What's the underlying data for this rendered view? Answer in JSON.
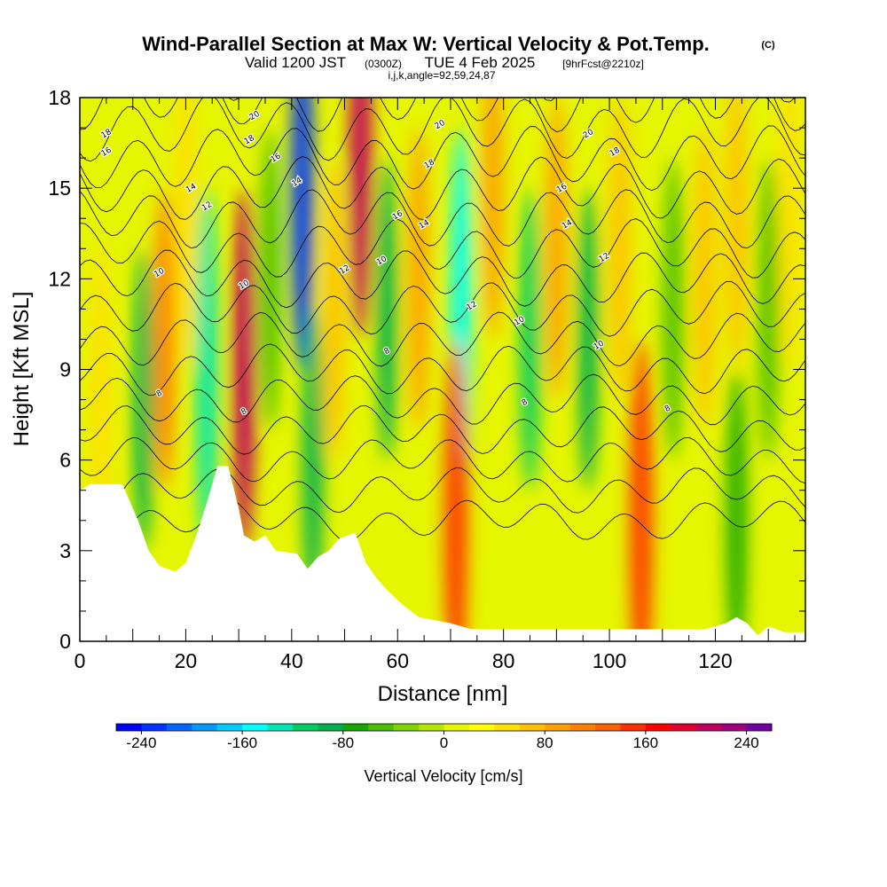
{
  "title": {
    "main": "Wind-Parallel Section at Max W: Vertical Velocity & Pot.Temp.",
    "copyright": "(C)",
    "valid_prefix": "Valid 1200 JST",
    "valid_utc": "(0300Z)",
    "valid_date": "TUE 4 Feb 2025",
    "forecast": "[9hrFcst@2210z]",
    "params": "i,j,k,angle=92,59,24,87"
  },
  "chart_data": {
    "type": "heatmap",
    "xlabel": "Distance [nm]",
    "ylabel": "Height [Kft MSL]",
    "xlim": [
      0,
      137
    ],
    "ylim": [
      0,
      18
    ],
    "x_ticks": [
      0,
      20,
      40,
      60,
      80,
      100,
      120
    ],
    "y_ticks": [
      0,
      3,
      6,
      9,
      12,
      15,
      18
    ],
    "colorbar": {
      "label": "Vertical Velocity [cm/s]",
      "min": -260,
      "max": 260,
      "step": 20,
      "tick_values": [
        -240,
        -160,
        -80,
        0,
        80,
        160,
        240
      ],
      "colors": [
        "#0000ff",
        "#0033ff",
        "#0066ff",
        "#0099ff",
        "#00ccff",
        "#00ffff",
        "#00e6b4",
        "#00cc66",
        "#00b050",
        "#19a800",
        "#4cbf00",
        "#80d400",
        "#b3e600",
        "#e6f500",
        "#ffff00",
        "#ffe000",
        "#ffc000",
        "#ffa000",
        "#ff8000",
        "#ff6000",
        "#ff3000",
        "#ff0000",
        "#e00030",
        "#c00060",
        "#a00080",
        "#7000a0"
      ]
    },
    "velocity_cells": [
      {
        "x": 4,
        "y": 8,
        "w": 40
      },
      {
        "x": 12,
        "y": 8,
        "w": -100
      },
      {
        "x": 16,
        "y": 10,
        "w": 110
      },
      {
        "x": 20,
        "y": 14,
        "w": 40
      },
      {
        "x": 24,
        "y": 9,
        "w": -140
      },
      {
        "x": 31,
        "y": 9,
        "w": 200
      },
      {
        "x": 36,
        "y": 12,
        "w": -60
      },
      {
        "x": 42,
        "y": 15,
        "w": -240
      },
      {
        "x": 44,
        "y": 6,
        "w": -100
      },
      {
        "x": 48,
        "y": 11,
        "w": 70
      },
      {
        "x": 53,
        "y": 16,
        "w": 200
      },
      {
        "x": 58,
        "y": 11,
        "w": -100
      },
      {
        "x": 64,
        "y": 12,
        "w": 90
      },
      {
        "x": 72,
        "y": 11,
        "w": -150
      },
      {
        "x": 71,
        "y": 4,
        "w": 150
      },
      {
        "x": 78,
        "y": 15,
        "w": 90
      },
      {
        "x": 85,
        "y": 10,
        "w": -110
      },
      {
        "x": 90,
        "y": 13,
        "w": 90
      },
      {
        "x": 96,
        "y": 10,
        "w": -100
      },
      {
        "x": 106,
        "y": 4,
        "w": 150
      },
      {
        "x": 102,
        "y": 13,
        "w": 70
      },
      {
        "x": 112,
        "y": 11,
        "w": -60
      },
      {
        "x": 118,
        "y": 12,
        "w": 60
      },
      {
        "x": 124,
        "y": 4,
        "w": -80
      },
      {
        "x": 124,
        "y": 14,
        "w": 70
      },
      {
        "x": 130,
        "y": 11,
        "w": -60
      },
      {
        "x": 134,
        "y": 14,
        "w": 50
      }
    ],
    "terrain": [
      [
        0,
        5.0
      ],
      [
        2,
        5.2
      ],
      [
        8,
        5.2
      ],
      [
        11,
        4.0
      ],
      [
        13,
        3.0
      ],
      [
        15,
        2.5
      ],
      [
        18,
        2.3
      ],
      [
        20,
        2.6
      ],
      [
        22,
        3.5
      ],
      [
        24,
        4.6
      ],
      [
        26,
        5.8
      ],
      [
        28,
        5.8
      ],
      [
        30,
        4.4
      ],
      [
        31,
        3.5
      ],
      [
        33,
        3.3
      ],
      [
        35,
        3.5
      ],
      [
        37,
        3.0
      ],
      [
        41,
        2.9
      ],
      [
        43,
        2.4
      ],
      [
        45,
        2.8
      ],
      [
        47,
        3.0
      ],
      [
        49,
        3.4
      ],
      [
        52,
        3.6
      ],
      [
        54,
        2.6
      ],
      [
        56,
        2.1
      ],
      [
        58,
        1.7
      ],
      [
        61,
        1.2
      ],
      [
        64,
        0.8
      ],
      [
        70,
        0.6
      ],
      [
        74,
        0.4
      ],
      [
        110,
        0.4
      ],
      [
        118,
        0.4
      ],
      [
        122,
        0.6
      ],
      [
        124,
        0.8
      ],
      [
        126,
        0.6
      ],
      [
        128,
        0.2
      ],
      [
        130,
        0.5
      ],
      [
        133,
        0.3
      ],
      [
        137,
        0.3
      ]
    ],
    "theta_contours": {
      "isentropes": [
        4,
        5,
        6,
        7,
        8,
        9,
        10,
        11,
        12,
        13,
        14,
        15,
        16,
        17,
        18,
        19,
        20,
        21,
        22
      ],
      "labels": [
        {
          "text": "18",
          "x": 5,
          "y": 16.8
        },
        {
          "text": "16",
          "x": 5,
          "y": 16.2
        },
        {
          "text": "14",
          "x": 21,
          "y": 15.0
        },
        {
          "text": "12",
          "x": 24,
          "y": 14.4
        },
        {
          "text": "10",
          "x": 15,
          "y": 12.2
        },
        {
          "text": "8",
          "x": 15,
          "y": 8.2
        },
        {
          "text": "8",
          "x": 31,
          "y": 7.6
        },
        {
          "text": "10",
          "x": 31,
          "y": 11.8
        },
        {
          "text": "20",
          "x": 33,
          "y": 17.4
        },
        {
          "text": "18",
          "x": 32,
          "y": 16.6
        },
        {
          "text": "16",
          "x": 37,
          "y": 16.0
        },
        {
          "text": "14",
          "x": 41,
          "y": 15.2
        },
        {
          "text": "12",
          "x": 50,
          "y": 12.3
        },
        {
          "text": "10",
          "x": 57,
          "y": 12.6
        },
        {
          "text": "8",
          "x": 58,
          "y": 9.6
        },
        {
          "text": "16",
          "x": 60,
          "y": 14.1
        },
        {
          "text": "14",
          "x": 65,
          "y": 13.8
        },
        {
          "text": "18",
          "x": 66,
          "y": 15.8
        },
        {
          "text": "20",
          "x": 68,
          "y": 17.1
        },
        {
          "text": "12",
          "x": 74,
          "y": 11.1
        },
        {
          "text": "10",
          "x": 83,
          "y": 10.6
        },
        {
          "text": "8",
          "x": 84,
          "y": 7.9
        },
        {
          "text": "16",
          "x": 91,
          "y": 15.0
        },
        {
          "text": "14",
          "x": 92,
          "y": 13.8
        },
        {
          "text": "20",
          "x": 96,
          "y": 16.8
        },
        {
          "text": "18",
          "x": 101,
          "y": 16.2
        },
        {
          "text": "12",
          "x": 99,
          "y": 12.7
        },
        {
          "text": "10",
          "x": 98,
          "y": 9.8
        },
        {
          "text": "8",
          "x": 111,
          "y": 7.7
        }
      ]
    }
  }
}
